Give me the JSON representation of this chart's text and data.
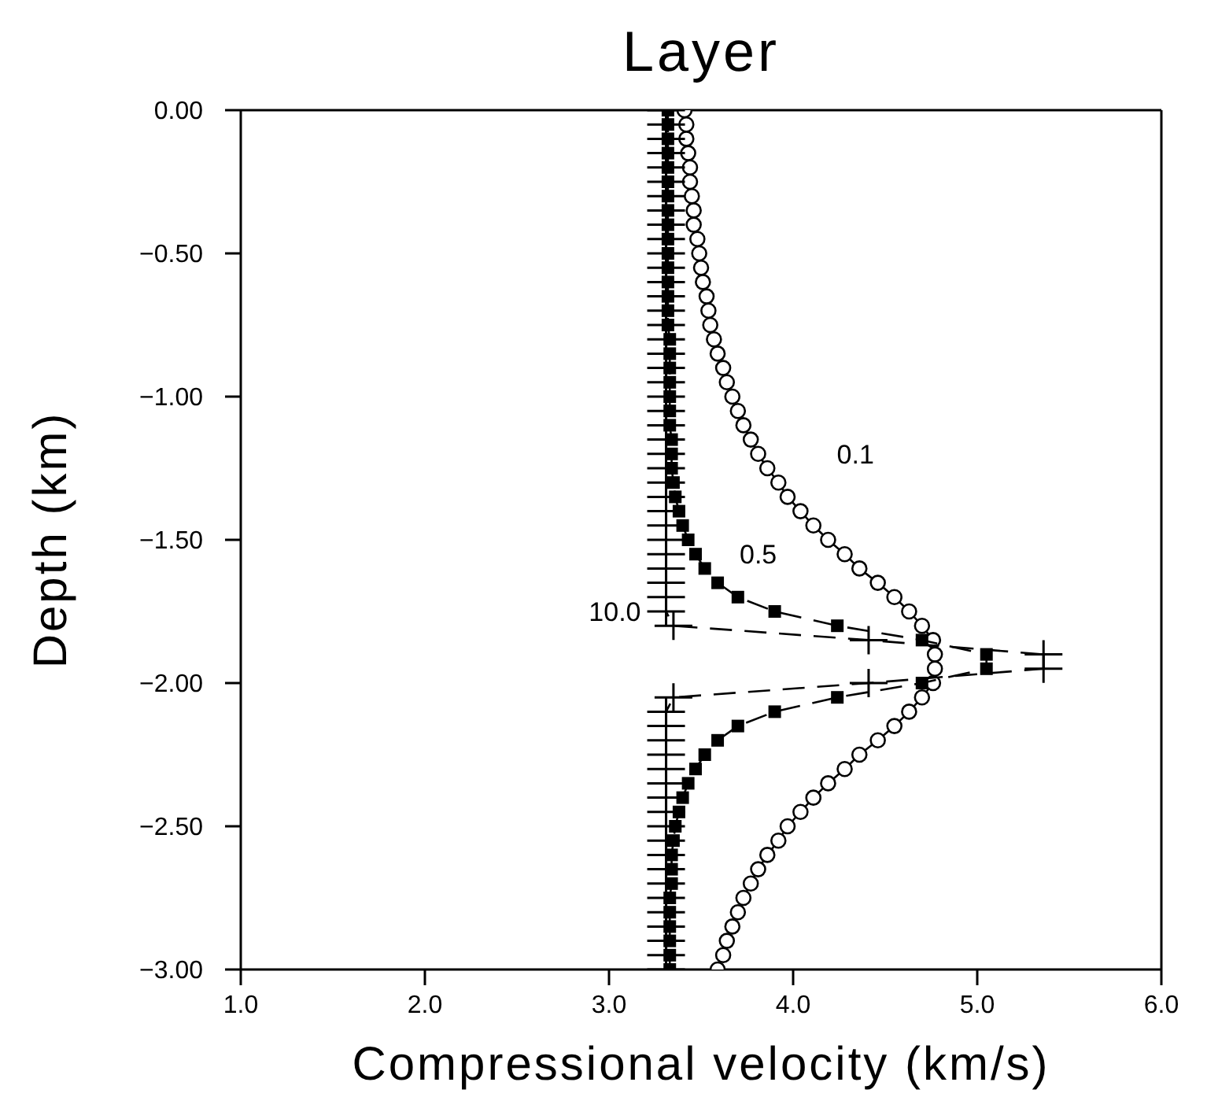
{
  "chart_data": {
    "type": "line",
    "title": "Layer",
    "xlabel": "Compressional velocity (km/s)",
    "ylabel": "Depth (km)",
    "xlim": [
      1,
      6
    ],
    "ylim": [
      -3,
      0
    ],
    "xticks": [
      {
        "value": 1,
        "label": "1.0"
      },
      {
        "value": 2,
        "label": "2.0"
      },
      {
        "value": 3,
        "label": "3.0"
      },
      {
        "value": 4,
        "label": "4.0"
      },
      {
        "value": 5,
        "label": "5.0"
      },
      {
        "value": 6,
        "label": "6.0"
      }
    ],
    "yticks": [
      {
        "value": 0,
        "label": "0.00"
      },
      {
        "value": -0.5,
        "label": "−0.50"
      },
      {
        "value": -1,
        "label": "−1.00"
      },
      {
        "value": -1.5,
        "label": "−1.50"
      },
      {
        "value": -2,
        "label": "−2.00"
      },
      {
        "value": -2.5,
        "label": "−2.50"
      },
      {
        "value": -3,
        "label": "−3.00"
      }
    ],
    "grid": false,
    "legend": false,
    "series": [
      {
        "name": "0.1",
        "color": "#000000",
        "marker": "circle",
        "line_style": "solid",
        "x": [
          3.41,
          3.42,
          3.42,
          3.43,
          3.44,
          3.44,
          3.45,
          3.46,
          3.46,
          3.48,
          3.49,
          3.5,
          3.51,
          3.53,
          3.54,
          3.55,
          3.57,
          3.59,
          3.62,
          3.64,
          3.67,
          3.7,
          3.73,
          3.77,
          3.81,
          3.86,
          3.92,
          3.97,
          4.04,
          4.11,
          4.19,
          4.28,
          4.36,
          4.46,
          4.55,
          4.63,
          4.7,
          4.76,
          4.77,
          4.77,
          4.76,
          4.7,
          4.63,
          4.55,
          4.46,
          4.36,
          4.28,
          4.19,
          4.11,
          4.04,
          3.97,
          3.92,
          3.86,
          3.81,
          3.77,
          3.73,
          3.7,
          3.67,
          3.64,
          3.62,
          3.59
        ],
        "values": [
          0,
          -0.05,
          -0.1,
          -0.15,
          -0.2,
          -0.25,
          -0.3,
          -0.35,
          -0.4,
          -0.45,
          -0.5,
          -0.55,
          -0.6,
          -0.65,
          -0.7,
          -0.75,
          -0.8,
          -0.85,
          -0.9,
          -0.95,
          -1,
          -1.05,
          -1.1,
          -1.15,
          -1.2,
          -1.25,
          -1.3,
          -1.35,
          -1.4,
          -1.45,
          -1.5,
          -1.55,
          -1.6,
          -1.65,
          -1.7,
          -1.75,
          -1.8,
          -1.85,
          -1.9,
          -1.95,
          -2,
          -2.05,
          -2.1,
          -2.15,
          -2.2,
          -2.25,
          -2.3,
          -2.35,
          -2.4,
          -2.45,
          -2.5,
          -2.55,
          -2.6,
          -2.65,
          -2.7,
          -2.75,
          -2.8,
          -2.85,
          -2.9,
          -2.95,
          -3
        ]
      },
      {
        "name": "0.5",
        "color": "#000000",
        "marker": "square",
        "line_style": "dashed",
        "x": [
          3.32,
          3.32,
          3.32,
          3.32,
          3.32,
          3.32,
          3.32,
          3.32,
          3.32,
          3.32,
          3.32,
          3.32,
          3.32,
          3.32,
          3.32,
          3.32,
          3.33,
          3.33,
          3.33,
          3.33,
          3.33,
          3.33,
          3.33,
          3.34,
          3.34,
          3.34,
          3.35,
          3.36,
          3.38,
          3.4,
          3.43,
          3.47,
          3.52,
          3.59,
          3.7,
          3.9,
          4.24,
          4.7,
          5.05,
          5.05,
          4.7,
          4.24,
          3.9,
          3.7,
          3.59,
          3.52,
          3.47,
          3.43,
          3.4,
          3.38,
          3.36,
          3.35,
          3.34,
          3.34,
          3.34,
          3.33,
          3.33,
          3.33,
          3.33,
          3.33,
          3.33
        ],
        "values": [
          0,
          -0.05,
          -0.1,
          -0.15,
          -0.2,
          -0.25,
          -0.3,
          -0.35,
          -0.4,
          -0.45,
          -0.5,
          -0.55,
          -0.6,
          -0.65,
          -0.7,
          -0.75,
          -0.8,
          -0.85,
          -0.9,
          -0.95,
          -1,
          -1.05,
          -1.1,
          -1.15,
          -1.2,
          -1.25,
          -1.3,
          -1.35,
          -1.4,
          -1.45,
          -1.5,
          -1.55,
          -1.6,
          -1.65,
          -1.7,
          -1.75,
          -1.8,
          -1.85,
          -1.9,
          -1.95,
          -2,
          -2.05,
          -2.1,
          -2.15,
          -2.2,
          -2.25,
          -2.3,
          -2.35,
          -2.4,
          -2.45,
          -2.5,
          -2.55,
          -2.6,
          -2.65,
          -2.7,
          -2.75,
          -2.8,
          -2.85,
          -2.9,
          -2.95,
          -3
        ]
      },
      {
        "name": "10.0",
        "color": "#000000",
        "marker": "cross",
        "line_style": "dashed",
        "x": [
          3.31,
          3.31,
          3.31,
          3.31,
          3.31,
          3.31,
          3.31,
          3.31,
          3.31,
          3.31,
          3.31,
          3.31,
          3.31,
          3.31,
          3.31,
          3.31,
          3.31,
          3.31,
          3.31,
          3.31,
          3.31,
          3.31,
          3.31,
          3.31,
          3.31,
          3.31,
          3.31,
          3.31,
          3.31,
          3.31,
          3.31,
          3.31,
          3.31,
          3.31,
          3.31,
          3.31,
          3.35,
          4.41,
          5.36,
          5.36,
          4.41,
          3.35,
          3.31,
          3.31,
          3.31,
          3.31,
          3.31,
          3.31,
          3.31,
          3.31,
          3.31,
          3.31,
          3.31,
          3.31,
          3.31,
          3.31,
          3.31,
          3.31,
          3.31,
          3.31,
          3.31
        ],
        "values": [
          0,
          -0.05,
          -0.1,
          -0.15,
          -0.2,
          -0.25,
          -0.3,
          -0.35,
          -0.4,
          -0.45,
          -0.5,
          -0.55,
          -0.6,
          -0.65,
          -0.7,
          -0.75,
          -0.8,
          -0.85,
          -0.9,
          -0.95,
          -1,
          -1.05,
          -1.1,
          -1.15,
          -1.2,
          -1.25,
          -1.3,
          -1.35,
          -1.4,
          -1.45,
          -1.5,
          -1.55,
          -1.6,
          -1.65,
          -1.7,
          -1.75,
          -1.8,
          -1.85,
          -1.9,
          -1.95,
          -2,
          -2.05,
          -2.1,
          -2.15,
          -2.2,
          -2.25,
          -2.3,
          -2.35,
          -2.4,
          -2.45,
          -2.5,
          -2.55,
          -2.6,
          -2.65,
          -2.7,
          -2.75,
          -2.8,
          -2.85,
          -2.9,
          -2.95,
          -3
        ]
      }
    ]
  }
}
